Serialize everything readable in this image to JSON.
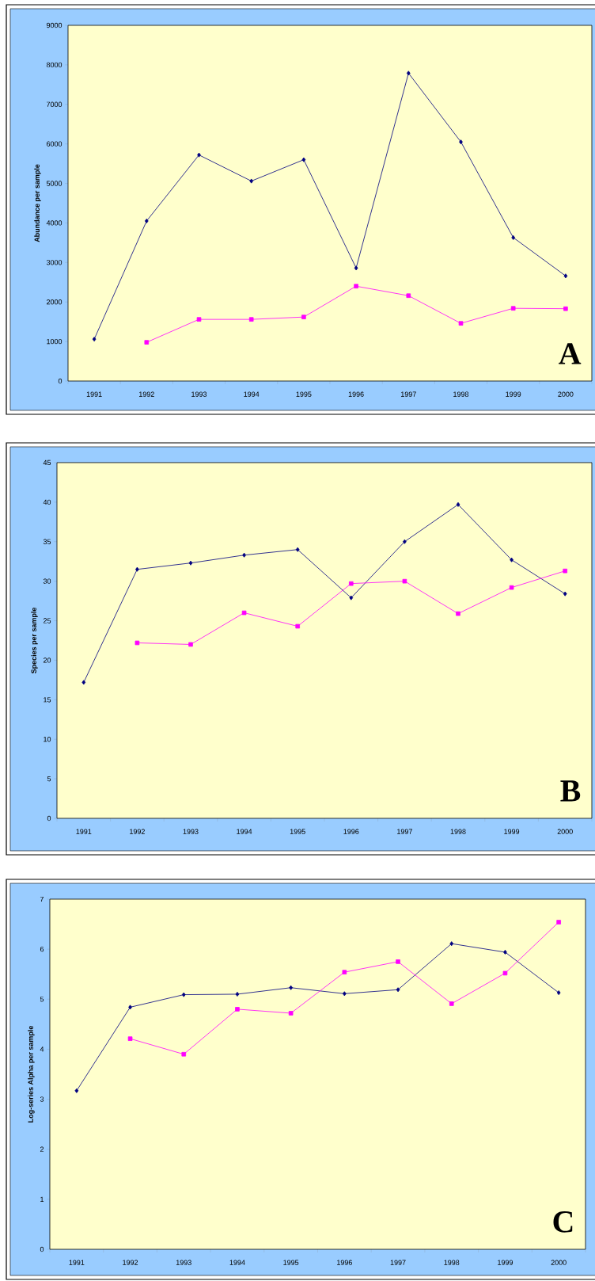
{
  "chart_data": [
    {
      "type": "line",
      "ylabel": "Abundance per sample",
      "categories": [
        "1991",
        "1992",
        "1993",
        "1994",
        "1995",
        "1996",
        "1997",
        "1998",
        "1999",
        "2000"
      ],
      "series": [
        {
          "color": "#000080",
          "marker": "diamond",
          "values": [
            1060,
            4050,
            5720,
            5060,
            5600,
            2860,
            7790,
            6050,
            3630,
            2660
          ]
        },
        {
          "color": "#ff00ff",
          "marker": "square",
          "values": [
            null,
            980,
            1560,
            1560,
            1620,
            2400,
            2160,
            1460,
            1840,
            1830
          ]
        }
      ],
      "ylim": [
        0,
        9000
      ],
      "yticks": [
        0,
        1000,
        2000,
        3000,
        4000,
        5000,
        6000,
        7000,
        8000,
        9000
      ],
      "annotations": [
        "A"
      ]
    },
    {
      "type": "line",
      "ylabel": "Species per sample",
      "categories": [
        "1991",
        "1992",
        "1993",
        "1994",
        "1995",
        "1996",
        "1997",
        "1998",
        "1999",
        "2000"
      ],
      "series": [
        {
          "color": "#000080",
          "marker": "diamond",
          "values": [
            17.2,
            31.5,
            32.3,
            33.3,
            34.0,
            27.9,
            35.0,
            39.7,
            32.7,
            28.4
          ]
        },
        {
          "color": "#ff00ff",
          "marker": "square",
          "values": [
            null,
            22.2,
            22.0,
            26.0,
            24.3,
            29.7,
            30.0,
            25.9,
            29.2,
            31.3
          ]
        }
      ],
      "ylim": [
        0,
        45
      ],
      "yticks": [
        0,
        5,
        10,
        15,
        20,
        25,
        30,
        35,
        40,
        45
      ],
      "annotations": [
        "B"
      ]
    },
    {
      "type": "line",
      "ylabel": "Log-series Alpha per sample",
      "categories": [
        "1991",
        "1992",
        "1993",
        "1994",
        "1995",
        "1996",
        "1997",
        "1998",
        "1999",
        "2000"
      ],
      "series": [
        {
          "color": "#000080",
          "marker": "diamond",
          "values": [
            3.17,
            4.84,
            5.09,
            5.1,
            5.23,
            5.11,
            5.19,
            6.11,
            5.94,
            5.13
          ]
        },
        {
          "color": "#ff00ff",
          "marker": "square",
          "values": [
            null,
            4.21,
            3.9,
            4.8,
            4.72,
            5.54,
            5.75,
            4.91,
            5.52,
            6.54
          ]
        }
      ],
      "ylim": [
        0,
        7
      ],
      "yticks": [
        0,
        1,
        2,
        3,
        4,
        5,
        6,
        7
      ],
      "annotations": [
        "C"
      ]
    }
  ]
}
